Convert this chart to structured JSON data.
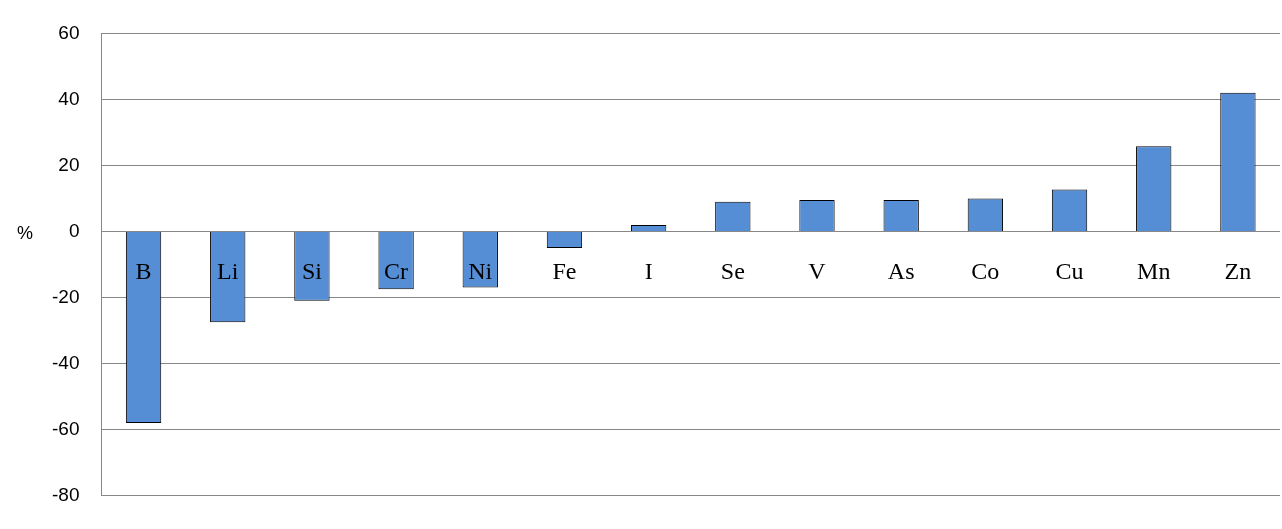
{
  "chart_data": {
    "type": "bar",
    "ylabel": "%",
    "categories": [
      "B",
      "Li",
      "Si",
      "Cr",
      "Ni",
      "Fe",
      "I",
      "Se",
      "V",
      "As",
      "Co",
      "Cu",
      "Mn",
      "Zn"
    ],
    "values": [
      -58,
      -27.5,
      -21,
      -17.5,
      -17,
      -5,
      2,
      9,
      9.5,
      9.5,
      10,
      12.7,
      25.8,
      42
    ],
    "color": "#558ed5",
    "ylim": [
      -80,
      60
    ],
    "yticks": [
      -80,
      -60,
      -40,
      -20,
      0,
      20,
      40,
      60
    ],
    "grid": "y",
    "legend": false
  }
}
